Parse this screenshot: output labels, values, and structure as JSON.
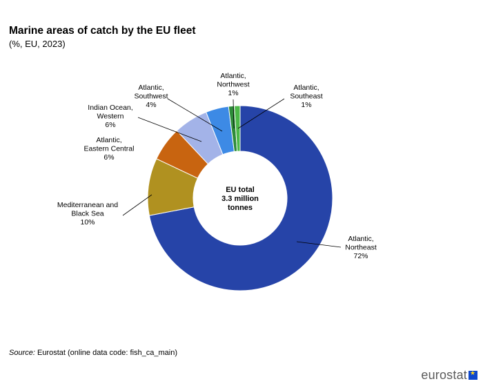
{
  "title": "Marine areas of catch by the EU fleet",
  "subtitle": "(%, EU, 2023)",
  "center_label": [
    "EU total",
    "3.3 million",
    "tonnes"
  ],
  "source": {
    "prefix": "Source:",
    "text": " Eurostat (online data code: fish_ca_main)"
  },
  "logo": {
    "text": "eurostat"
  },
  "chart_data": {
    "type": "pie",
    "variant": "donut",
    "title": "Marine areas of catch by the EU fleet",
    "subtitle": "(%, EU, 2023)",
    "unit": "%",
    "slices": [
      {
        "name": "Atlantic, Northeast",
        "value": 72,
        "label_lines": [
          "Atlantic,",
          "Northeast",
          "72%"
        ],
        "color": "#2644a8"
      },
      {
        "name": "Mediterranean and Black Sea",
        "value": 10,
        "label_lines": [
          "Mediterranean and",
          "Black Sea",
          "10%"
        ],
        "color": "#b09120"
      },
      {
        "name": "Atlantic, Eastern Central",
        "value": 6,
        "label_lines": [
          "Atlantic,",
          "Eastern Central",
          "6%"
        ],
        "color": "#c86410"
      },
      {
        "name": "Indian Ocean, Western",
        "value": 6,
        "label_lines": [
          "Indian Ocean,",
          "Western",
          "6%"
        ],
        "color": "#a3b3e8"
      },
      {
        "name": "Atlantic, Southwest",
        "value": 4,
        "label_lines": [
          "Atlantic,",
          "Southwest",
          "4%"
        ],
        "color": "#3d8ae5"
      },
      {
        "name": "Atlantic, Northwest",
        "value": 1,
        "label_lines": [
          "Atlantic,",
          "Northwest",
          "1%"
        ],
        "color": "#2e8b3a"
      },
      {
        "name": "Atlantic, Southeast",
        "value": 1,
        "label_lines": [
          "Atlantic,",
          "Southeast",
          "1%"
        ],
        "color": "#4cb848"
      }
    ]
  }
}
